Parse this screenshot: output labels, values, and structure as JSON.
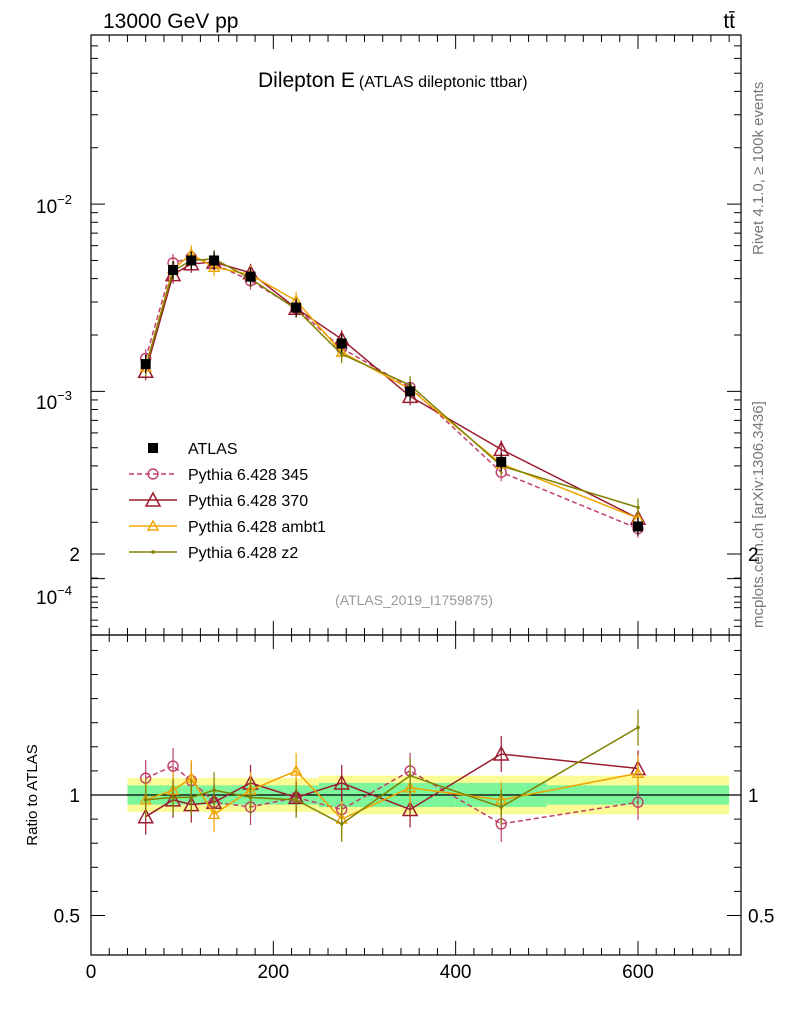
{
  "header": {
    "energy_label": "13000 GeV pp",
    "process_label": "tt̄",
    "title_main": "Dilepton E",
    "title_sub": "(ATLAS dileptonic ttbar)",
    "analysis_id": "(ATLAS_2019_I1759875)",
    "side_label_top": "Rivet 4.1.0, ≥ 100k events",
    "side_label_bottom": "mcplots.cern.ch [arXiv:1306.3436]"
  },
  "colors": {
    "ATLAS": "#000000",
    "p345": "#c0406a",
    "p370": "#9b1b30",
    "ambt1": "#f0a500",
    "z2": "#808000",
    "band_inner": "#7df59a",
    "band_outer": "#fbfb96"
  },
  "chart_data": [
    {
      "type": "line",
      "panel": "main",
      "yscale": "log",
      "xlim": [
        0,
        713
      ],
      "ylim": [
        5e-05,
        0.08
      ],
      "y_tick_labels": [
        "10^-2",
        "10^-3",
        "10^-4"
      ],
      "x": [
        60,
        90,
        110,
        135,
        175,
        225,
        275,
        350,
        450,
        600
      ],
      "series": [
        {
          "name": "ATLAS",
          "style": "square",
          "values": [
            0.0014,
            0.00445,
            0.005,
            0.005,
            0.0041,
            0.0028,
            0.0018,
            0.001,
            0.00042,
            0.00019
          ]
        },
        {
          "name": "Pythia 6.428 345",
          "style": "circle-dashed",
          "values": [
            0.0015,
            0.00485,
            0.0052,
            0.0048,
            0.0039,
            0.00278,
            0.0017,
            0.00105,
            0.00037,
            0.000185
          ]
        },
        {
          "name": "Pythia 6.428 370",
          "style": "triangle",
          "values": [
            0.00128,
            0.0042,
            0.0048,
            0.0049,
            0.0043,
            0.00278,
            0.0019,
            0.00094,
            0.00049,
            0.00021
          ]
        },
        {
          "name": "Pythia 6.428 ambt1",
          "style": "triangle-small",
          "values": [
            0.00135,
            0.0045,
            0.0054,
            0.0046,
            0.0042,
            0.00305,
            0.00162,
            0.00103,
            0.00041,
            0.00021
          ]
        },
        {
          "name": "Pythia 6.428 z2",
          "style": "dot",
          "values": [
            0.00135,
            0.0044,
            0.005,
            0.0051,
            0.004,
            0.00275,
            0.00158,
            0.00108,
            0.0004,
            0.00024
          ]
        }
      ],
      "legend": [
        "ATLAS",
        "Pythia 6.428 345",
        "Pythia 6.428 370",
        "Pythia 6.428 ambt1",
        "Pythia 6.428 z2"
      ],
      "legend_position": "lower-left"
    },
    {
      "type": "line",
      "panel": "ratio",
      "ylabel": "Ratio to ATLAS",
      "xlim": [
        0,
        713
      ],
      "ylim": [
        0.4,
        2.2
      ],
      "y_ticks": [
        0.5,
        1,
        2
      ],
      "y_tick_labels": [
        "0.5",
        "1",
        "2"
      ],
      "x_ticks": [
        0,
        200,
        400,
        600
      ],
      "x_tick_labels": [
        "0",
        "200",
        "400",
        "600"
      ],
      "x": [
        60,
        90,
        110,
        135,
        175,
        225,
        275,
        350,
        450,
        600
      ],
      "bins": [
        [
          40,
          80
        ],
        [
          80,
          100
        ],
        [
          100,
          120
        ],
        [
          120,
          150
        ],
        [
          150,
          200
        ],
        [
          200,
          250
        ],
        [
          250,
          300
        ],
        [
          300,
          400
        ],
        [
          400,
          500
        ],
        [
          500,
          700
        ]
      ],
      "band_inner": [
        0.04,
        0.04,
        0.04,
        0.04,
        0.04,
        0.04,
        0.05,
        0.05,
        0.05,
        0.04
      ],
      "band_outer": [
        0.07,
        0.07,
        0.07,
        0.07,
        0.07,
        0.07,
        0.08,
        0.08,
        0.08,
        0.08
      ],
      "series": [
        {
          "name": "Pythia 6.428 345",
          "values": [
            1.07,
            1.12,
            1.06,
            0.97,
            0.95,
            0.99,
            0.94,
            1.1,
            0.88,
            0.97
          ]
        },
        {
          "name": "Pythia 6.428 370",
          "values": [
            0.91,
            0.98,
            0.96,
            0.97,
            1.05,
            0.99,
            1.05,
            0.94,
            1.17,
            1.11
          ]
        },
        {
          "name": "Pythia 6.428 ambt1",
          "values": [
            0.98,
            1.02,
            1.07,
            0.92,
            1.02,
            1.1,
            0.9,
            1.03,
            0.98,
            1.09
          ]
        },
        {
          "name": "Pythia 6.428 z2",
          "values": [
            0.98,
            0.99,
            0.99,
            1.02,
            0.99,
            0.98,
            0.88,
            1.08,
            0.95,
            1.28
          ]
        }
      ]
    }
  ]
}
